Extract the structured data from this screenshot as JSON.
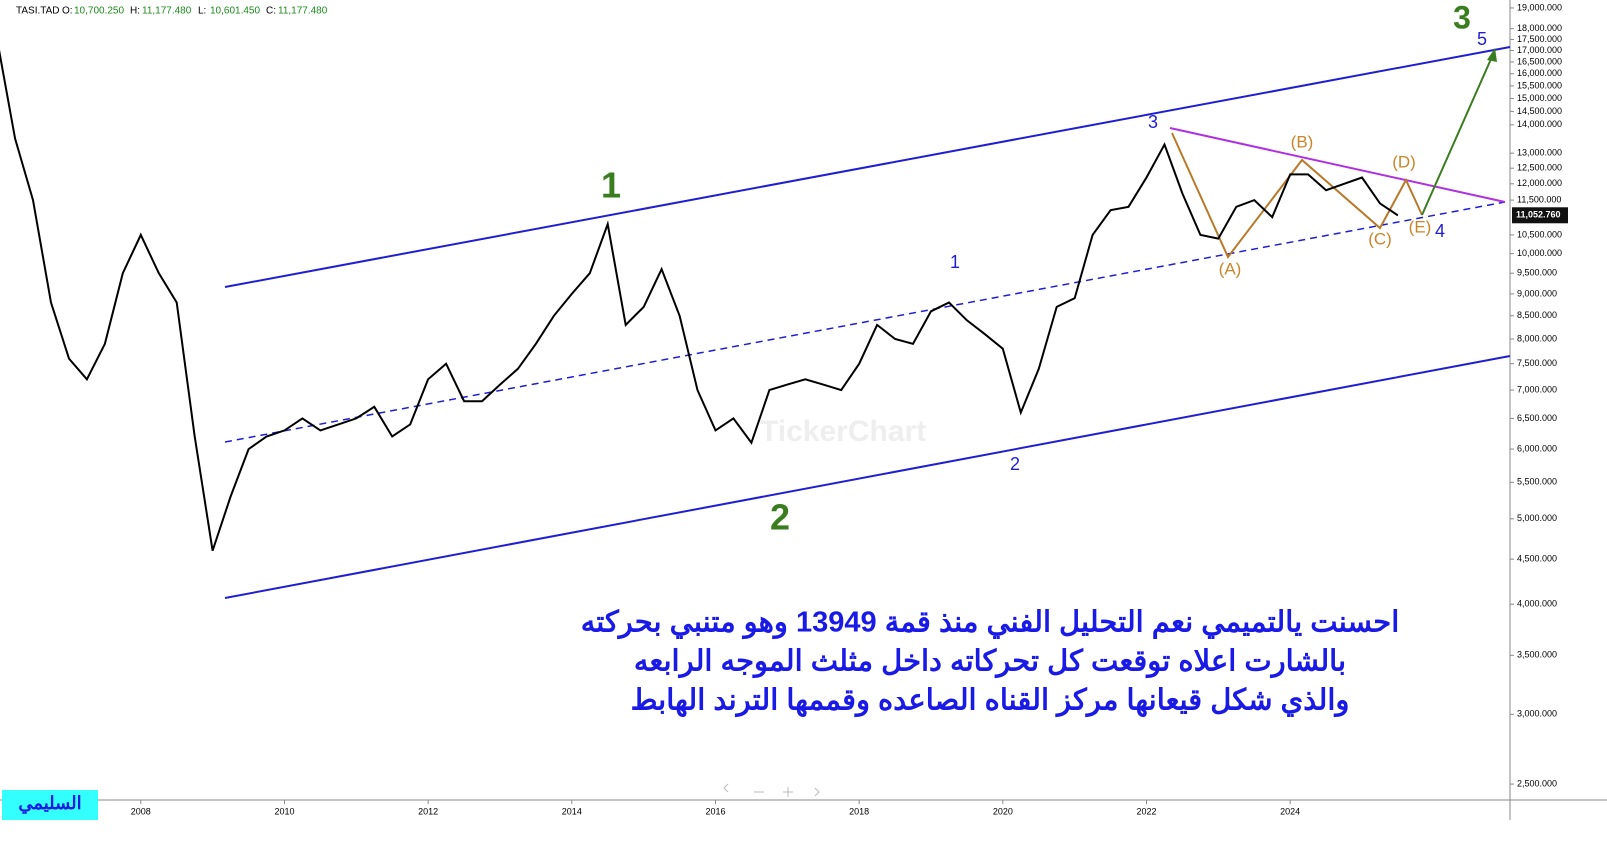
{
  "header": {
    "symbol": "TASI.TAD",
    "fields": [
      {
        "key": "O:",
        "value": "10,700.250"
      },
      {
        "key": "H:",
        "value": "11,177.480"
      },
      {
        "key": "L:",
        "value": "10,601.450"
      },
      {
        "key": "C:",
        "value": "11,177.480"
      }
    ]
  },
  "watermark": "TickerChart",
  "author": "السليمي",
  "chart_data": {
    "type": "line",
    "color": "#000000",
    "log_scale": true,
    "grid": false,
    "x": [
      2006.0,
      2006.25,
      2006.5,
      2006.75,
      2007.0,
      2007.25,
      2007.5,
      2007.75,
      2008.0,
      2008.25,
      2008.5,
      2008.75,
      2009.0,
      2009.25,
      2009.5,
      2009.75,
      2010.0,
      2010.25,
      2010.5,
      2010.75,
      2011.0,
      2011.25,
      2011.5,
      2011.75,
      2012.0,
      2012.25,
      2012.5,
      2012.75,
      2013.0,
      2013.25,
      2013.5,
      2013.75,
      2014.0,
      2014.25,
      2014.5,
      2014.75,
      2015.0,
      2015.25,
      2015.5,
      2015.75,
      2016.0,
      2016.25,
      2016.5,
      2016.75,
      2017.0,
      2017.25,
      2017.5,
      2017.75,
      2018.0,
      2018.25,
      2018.5,
      2018.75,
      2019.0,
      2019.25,
      2019.5,
      2019.75,
      2020.0,
      2020.25,
      2020.5,
      2020.75,
      2021.0,
      2021.25,
      2021.5,
      2021.75,
      2022.0,
      2022.25,
      2022.5,
      2022.75,
      2023.0,
      2023.25,
      2023.5,
      2023.75,
      2024.0,
      2024.25,
      2024.5,
      2024.75,
      2025.0,
      2025.25,
      2025.5
    ],
    "values": [
      17500,
      13500,
      11500,
      8800,
      7600,
      7200,
      7900,
      9500,
      10500,
      9500,
      8800,
      6200,
      4600,
      5300,
      6000,
      6200,
      6300,
      6500,
      6300,
      6400,
      6500,
      6700,
      6200,
      6400,
      7200,
      7500,
      6800,
      6800,
      7100,
      7400,
      7900,
      8500,
      9000,
      9500,
      10800,
      8300,
      8700,
      9600,
      8500,
      7000,
      6300,
      6500,
      6100,
      7000,
      7100,
      7200,
      7100,
      7000,
      7500,
      8300,
      8000,
      7900,
      8600,
      8800,
      8400,
      8100,
      7800,
      6600,
      7400,
      8700,
      8900,
      10500,
      11200,
      11300,
      12200,
      13300,
      11700,
      10500,
      10400,
      11300,
      11500,
      11000,
      12300,
      12300,
      11800,
      12000,
      12200,
      11400,
      11050
    ],
    "xlim": [
      2006.04,
      2027.06
    ],
    "xticks": [
      2008,
      2010,
      2012,
      2014,
      2016,
      2018,
      2020,
      2022,
      2024
    ],
    "ylim": [
      2398,
      19400
    ],
    "yticks": [
      {
        "value": 19000,
        "label": "19,000.000"
      },
      {
        "value": 18000,
        "label": "18,000.000"
      },
      {
        "value": 17500,
        "label": "17,500.000"
      },
      {
        "value": 17000,
        "label": "17,000.000"
      },
      {
        "value": 16500,
        "label": "16,500.000"
      },
      {
        "value": 16000,
        "label": "16,000.000"
      },
      {
        "value": 15500,
        "label": "15,500.000"
      },
      {
        "value": 15000,
        "label": "15,000.000"
      },
      {
        "value": 14500,
        "label": "14,500.000"
      },
      {
        "value": 14000,
        "label": "14,000.000"
      },
      {
        "value": 13000,
        "label": "13,000.000"
      },
      {
        "value": 12500,
        "label": "12,500.000"
      },
      {
        "value": 12000,
        "label": "12,000.000"
      },
      {
        "value": 11500,
        "label": "11,500.000"
      },
      {
        "value": 10500,
        "label": "10,500.000"
      },
      {
        "value": 10000,
        "label": "10,000.000"
      },
      {
        "value": 9500,
        "label": "9,500.000"
      },
      {
        "value": 9000,
        "label": "9,000.000"
      },
      {
        "value": 8500,
        "label": "8,500.000"
      },
      {
        "value": 8000,
        "label": "8,000.000"
      },
      {
        "value": 7500,
        "label": "7,500.000"
      },
      {
        "value": 7000,
        "label": "7,000.000"
      },
      {
        "value": 6500,
        "label": "6,500.000"
      },
      {
        "value": 6000,
        "label": "6,000.000"
      },
      {
        "value": 5500,
        "label": "5,500.000"
      },
      {
        "value": 5000,
        "label": "5,000.000"
      },
      {
        "value": 4500,
        "label": "4,500.000"
      },
      {
        "value": 4000,
        "label": "4,000.000"
      },
      {
        "value": 3500,
        "label": "3,500.000"
      },
      {
        "value": 3000,
        "label": "3,000.000"
      },
      {
        "value": 2500,
        "label": "2,500.000"
      }
    ],
    "last_price": {
      "value": 11052.76,
      "label": "11,052.760"
    },
    "annotations": [
      "1",
      "2",
      "3",
      "3",
      "1",
      "2",
      "4",
      "5",
      "(A)",
      "(B)",
      "(C)",
      "(D)",
      "(E)"
    ],
    "comment": [
      "احسنت يالتميمي نعم التحليل الفني منذ قمة 13949 وهو متنبي بحركته",
      "بالشارت اعلاه توقعت كل تحركاته داخل مثلث الموجه الرابعه",
      "والذي شكل قيعانها مركز القناه الصاعده وقممها الترند الهابط"
    ]
  }
}
